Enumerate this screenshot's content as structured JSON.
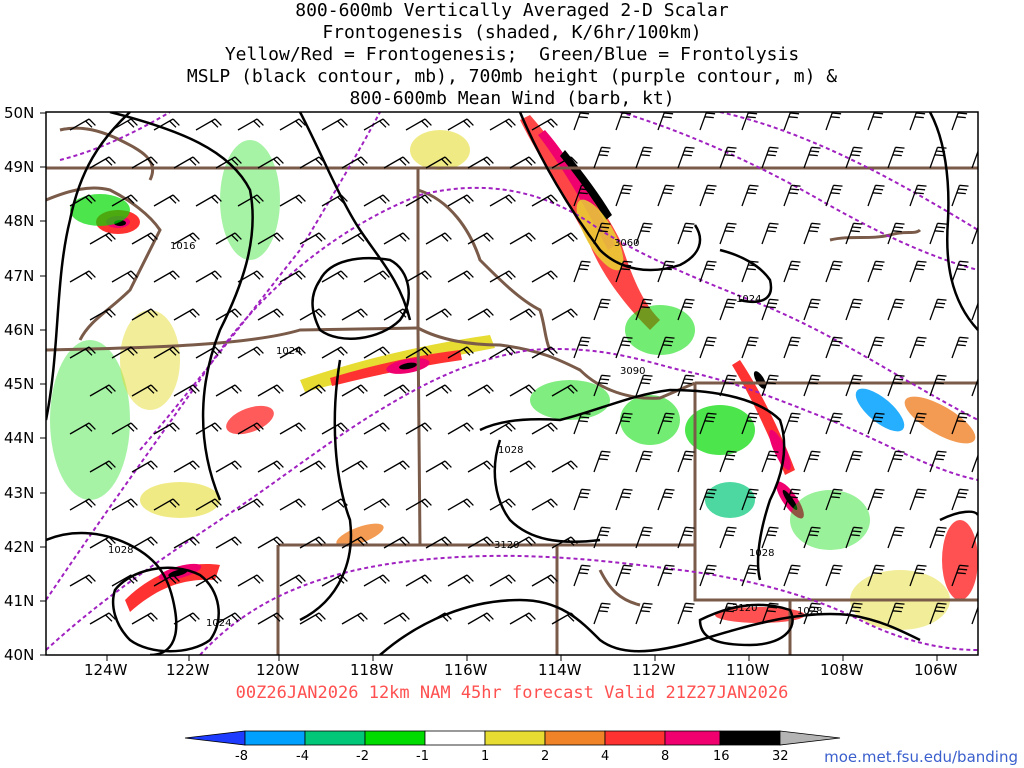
{
  "title": {
    "line1": "800-600mb Vertically Averaged 2-D Scalar",
    "line2": "Frontogenesis (shaded, K/6hr/100km)",
    "line3": "Yellow/Red = Frontogenesis;  Green/Blue = Frontolysis",
    "line4": "MSLP (black contour, mb), 700mb height (purple contour, m) &",
    "line5": "800-600mb Mean Wind (barb, kt)"
  },
  "map": {
    "region": "Pacific Northwest / Northern Rockies",
    "lat_labels": [
      "50N",
      "49N",
      "48N",
      "47N",
      "46N",
      "45N",
      "44N",
      "43N",
      "42N",
      "41N",
      "40N"
    ],
    "lon_labels": [
      "124W",
      "122W",
      "120W",
      "118W",
      "116W",
      "114W",
      "112W",
      "110W",
      "108W",
      "106W"
    ],
    "mslp_contour_labels": [
      "1016",
      "1024",
      "1028",
      "1028",
      "1024",
      "1028",
      "1028",
      "1024",
      "1028"
    ],
    "height_contour_labels": [
      "3060",
      "3090",
      "3120",
      "3120"
    ],
    "colors": {
      "mslp_contour": "#000000",
      "height_contour": "#a020c0",
      "borders": "#7a5a48",
      "barbs": "#000000"
    }
  },
  "footer": {
    "valid": "00Z26JAN2026 12km NAM 45hr forecast Valid 21Z27JAN2026",
    "credit": "moe.met.fsu.edu/banding"
  },
  "colorbar": {
    "ticks": [
      "-8",
      "-4",
      "-2",
      "-1",
      "1",
      "2",
      "4",
      "8",
      "16",
      "32"
    ],
    "colors": [
      "#1e3cff",
      "#00a0ff",
      "#00c878",
      "#00dc00",
      "#ffffff",
      "#e6dc32",
      "#f08228",
      "#ff3232",
      "#f0006e",
      "#000000",
      "#b4b4b4"
    ]
  }
}
